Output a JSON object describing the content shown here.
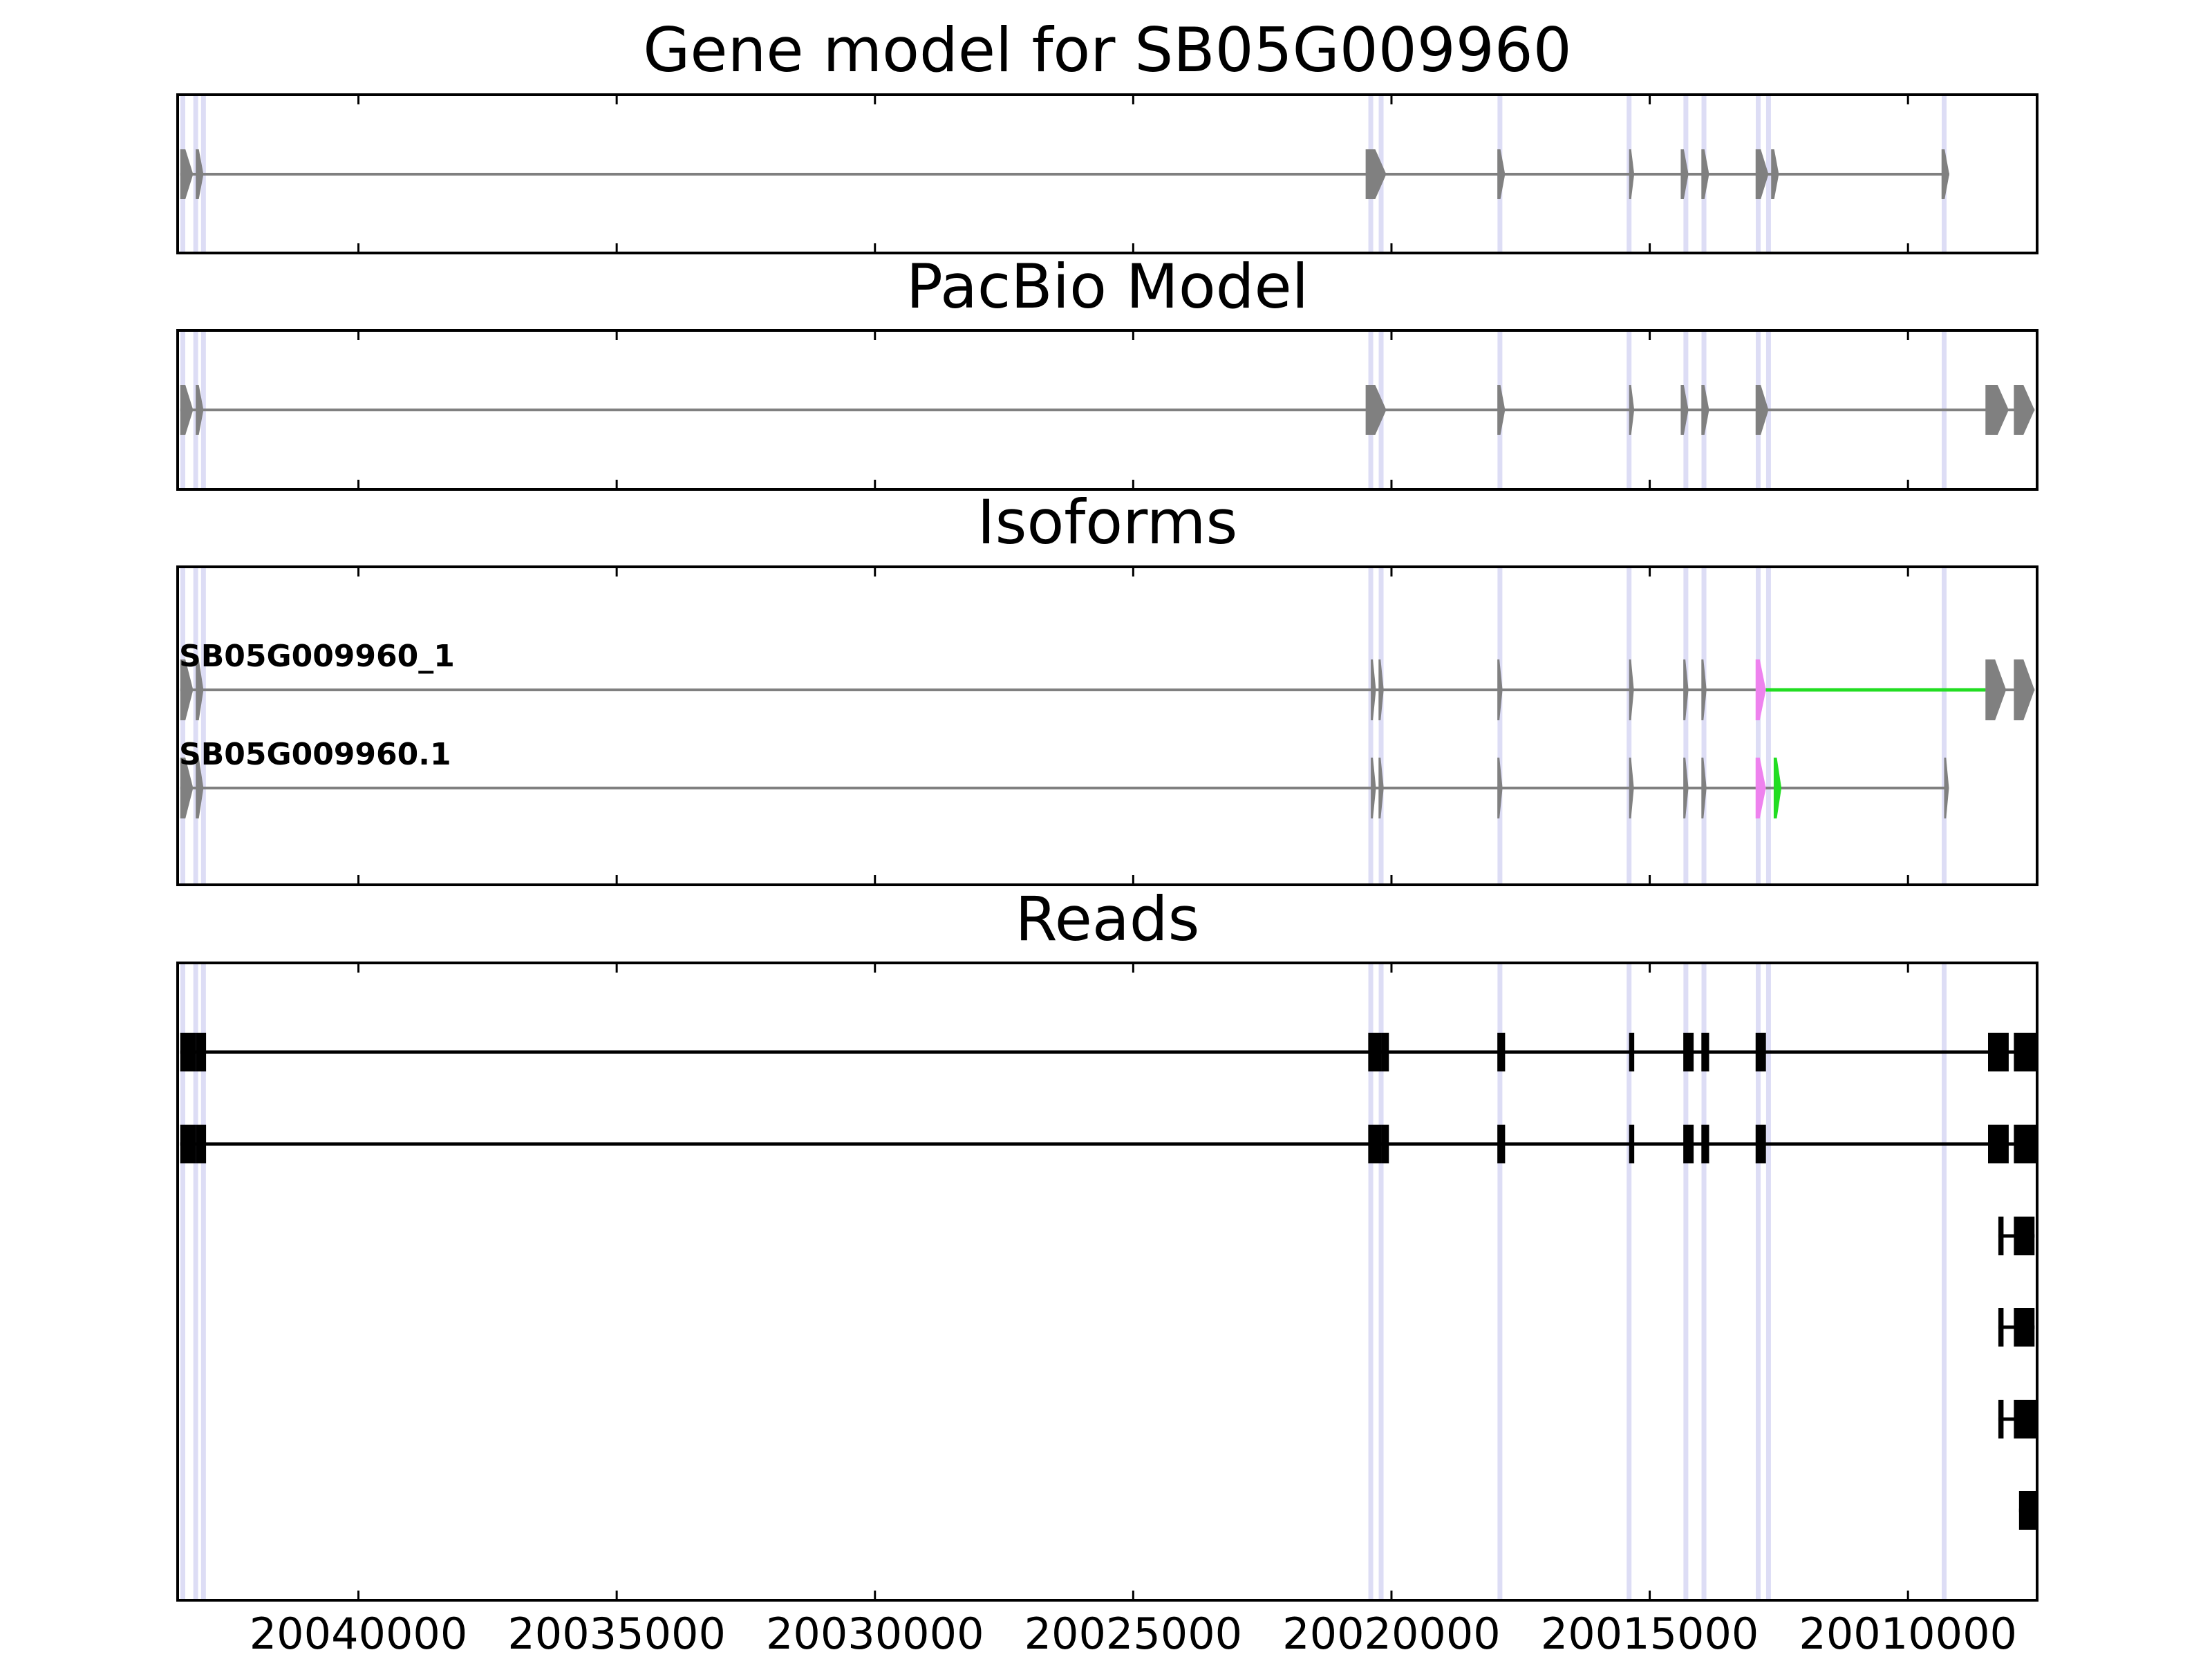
{
  "chart_data": {
    "type": "gene-structure",
    "xlim": [
      20043500,
      20007500
    ],
    "x_ticks": [
      20040000,
      20035000,
      20030000,
      20025000,
      20020000,
      20015000,
      20010000
    ],
    "colors": {
      "exon": "#808080",
      "read": "#000000",
      "guide": "#ddddf5",
      "isoform_unique_exon": "#ee82ee",
      "isoform_unique_junction": "#22dd22"
    },
    "boundaries": [
      20043400,
      20043150,
      20043000,
      20020400,
      20020200,
      20017900,
      20015400,
      20014300,
      20013950,
      20012900,
      20012700,
      20009300
    ],
    "panels": [
      {
        "key": "gene_model",
        "title": "Gene model for SB05G009960",
        "tracks": [
          {
            "label": "",
            "exons": [
              [
                20043450,
                20043200
              ],
              [
                20043150,
                20043000
              ],
              [
                20020500,
                20020100
              ],
              [
                20017950,
                20017800
              ],
              [
                20015400,
                20015300
              ],
              [
                20014400,
                20014250
              ],
              [
                20014000,
                20013850
              ],
              [
                20012950,
                20012700
              ],
              [
                20012650,
                20012500
              ],
              [
                20009350,
                20009200
              ]
            ],
            "highlight_exons": [],
            "highlight_introns": []
          }
        ]
      },
      {
        "key": "pacbio_model",
        "title": "PacBio Model",
        "tracks": [
          {
            "label": "",
            "exons": [
              [
                20043450,
                20043200
              ],
              [
                20043150,
                20043000
              ],
              [
                20020500,
                20020100
              ],
              [
                20017950,
                20017800
              ],
              [
                20015400,
                20015300
              ],
              [
                20014400,
                20014250
              ],
              [
                20014000,
                20013850
              ],
              [
                20012950,
                20012700
              ],
              [
                20008500,
                20008050
              ],
              [
                20007950,
                20007550
              ]
            ],
            "highlight_exons": [],
            "highlight_introns": []
          }
        ]
      },
      {
        "key": "isoforms",
        "title": "Isoforms",
        "tracks": [
          {
            "label": "SB05G009960_1",
            "exons": [
              [
                20043450,
                20043200
              ],
              [
                20043150,
                20043000
              ],
              [
                20020400,
                20020300
              ],
              [
                20020250,
                20020150
              ],
              [
                20017950,
                20017850
              ],
              [
                20015400,
                20015350
              ],
              [
                20014350,
                20014250
              ],
              [
                20014000,
                20013900
              ],
              [
                20012950,
                20012750
              ],
              [
                20008500,
                20008100
              ],
              [
                20007950,
                20007550
              ]
            ],
            "highlight_exons": [
              [
                20012950,
                20012750
              ]
            ],
            "highlight_introns": [
              [
                20012750,
                20008500
              ]
            ]
          },
          {
            "label": "SB05G009960.1",
            "exons": [
              [
                20043450,
                20043200
              ],
              [
                20043150,
                20043000
              ],
              [
                20020400,
                20020300
              ],
              [
                20020250,
                20020150
              ],
              [
                20017950,
                20017850
              ],
              [
                20015400,
                20015350
              ],
              [
                20014350,
                20014250
              ],
              [
                20014000,
                20013900
              ],
              [
                20012950,
                20012750
              ],
              [
                20012600,
                20012450
              ],
              [
                20009300,
                20009250
              ]
            ],
            "highlight_exons": [
              [
                20012950,
                20012750
              ],
              [
                20012600,
                20012450
              ]
            ],
            "highlight_introns": []
          }
        ]
      },
      {
        "key": "reads",
        "title": "Reads",
        "tracks": [
          {
            "label": "",
            "exons": [
              [
                20043450,
                20043150
              ],
              [
                20043150,
                20042950
              ],
              [
                20020450,
                20020200
              ],
              [
                20020200,
                20020050
              ],
              [
                20017950,
                20017800
              ],
              [
                20015400,
                20015300
              ],
              [
                20014350,
                20014150
              ],
              [
                20014000,
                20013850
              ],
              [
                20012950,
                20012750
              ],
              [
                20008450,
                20008050
              ],
              [
                20007950,
                20007500
              ]
            ],
            "highlight_exons": [],
            "highlight_introns": []
          },
          {
            "label": "",
            "exons": [
              [
                20043450,
                20043150
              ],
              [
                20043150,
                20042950
              ],
              [
                20020450,
                20020200
              ],
              [
                20020200,
                20020050
              ],
              [
                20017950,
                20017800
              ],
              [
                20015400,
                20015300
              ],
              [
                20014350,
                20014150
              ],
              [
                20014000,
                20013850
              ],
              [
                20012950,
                20012750
              ],
              [
                20008450,
                20008050
              ],
              [
                20007950,
                20007500
              ]
            ],
            "highlight_exons": [],
            "highlight_introns": []
          },
          {
            "label": "",
            "exons": [
              [
                20008250,
                20008150
              ],
              [
                20007950,
                20007550
              ]
            ],
            "highlight_exons": [],
            "highlight_introns": []
          },
          {
            "label": "",
            "exons": [
              [
                20008250,
                20008150
              ],
              [
                20007950,
                20007550
              ]
            ],
            "highlight_exons": [],
            "highlight_introns": []
          },
          {
            "label": "",
            "exons": [
              [
                20008250,
                20008150
              ],
              [
                20007950,
                20007500
              ]
            ],
            "highlight_exons": [],
            "highlight_introns": []
          },
          {
            "label": "",
            "exons": [
              [
                20007850,
                20007500
              ]
            ],
            "highlight_exons": [],
            "highlight_introns": []
          }
        ]
      }
    ]
  }
}
